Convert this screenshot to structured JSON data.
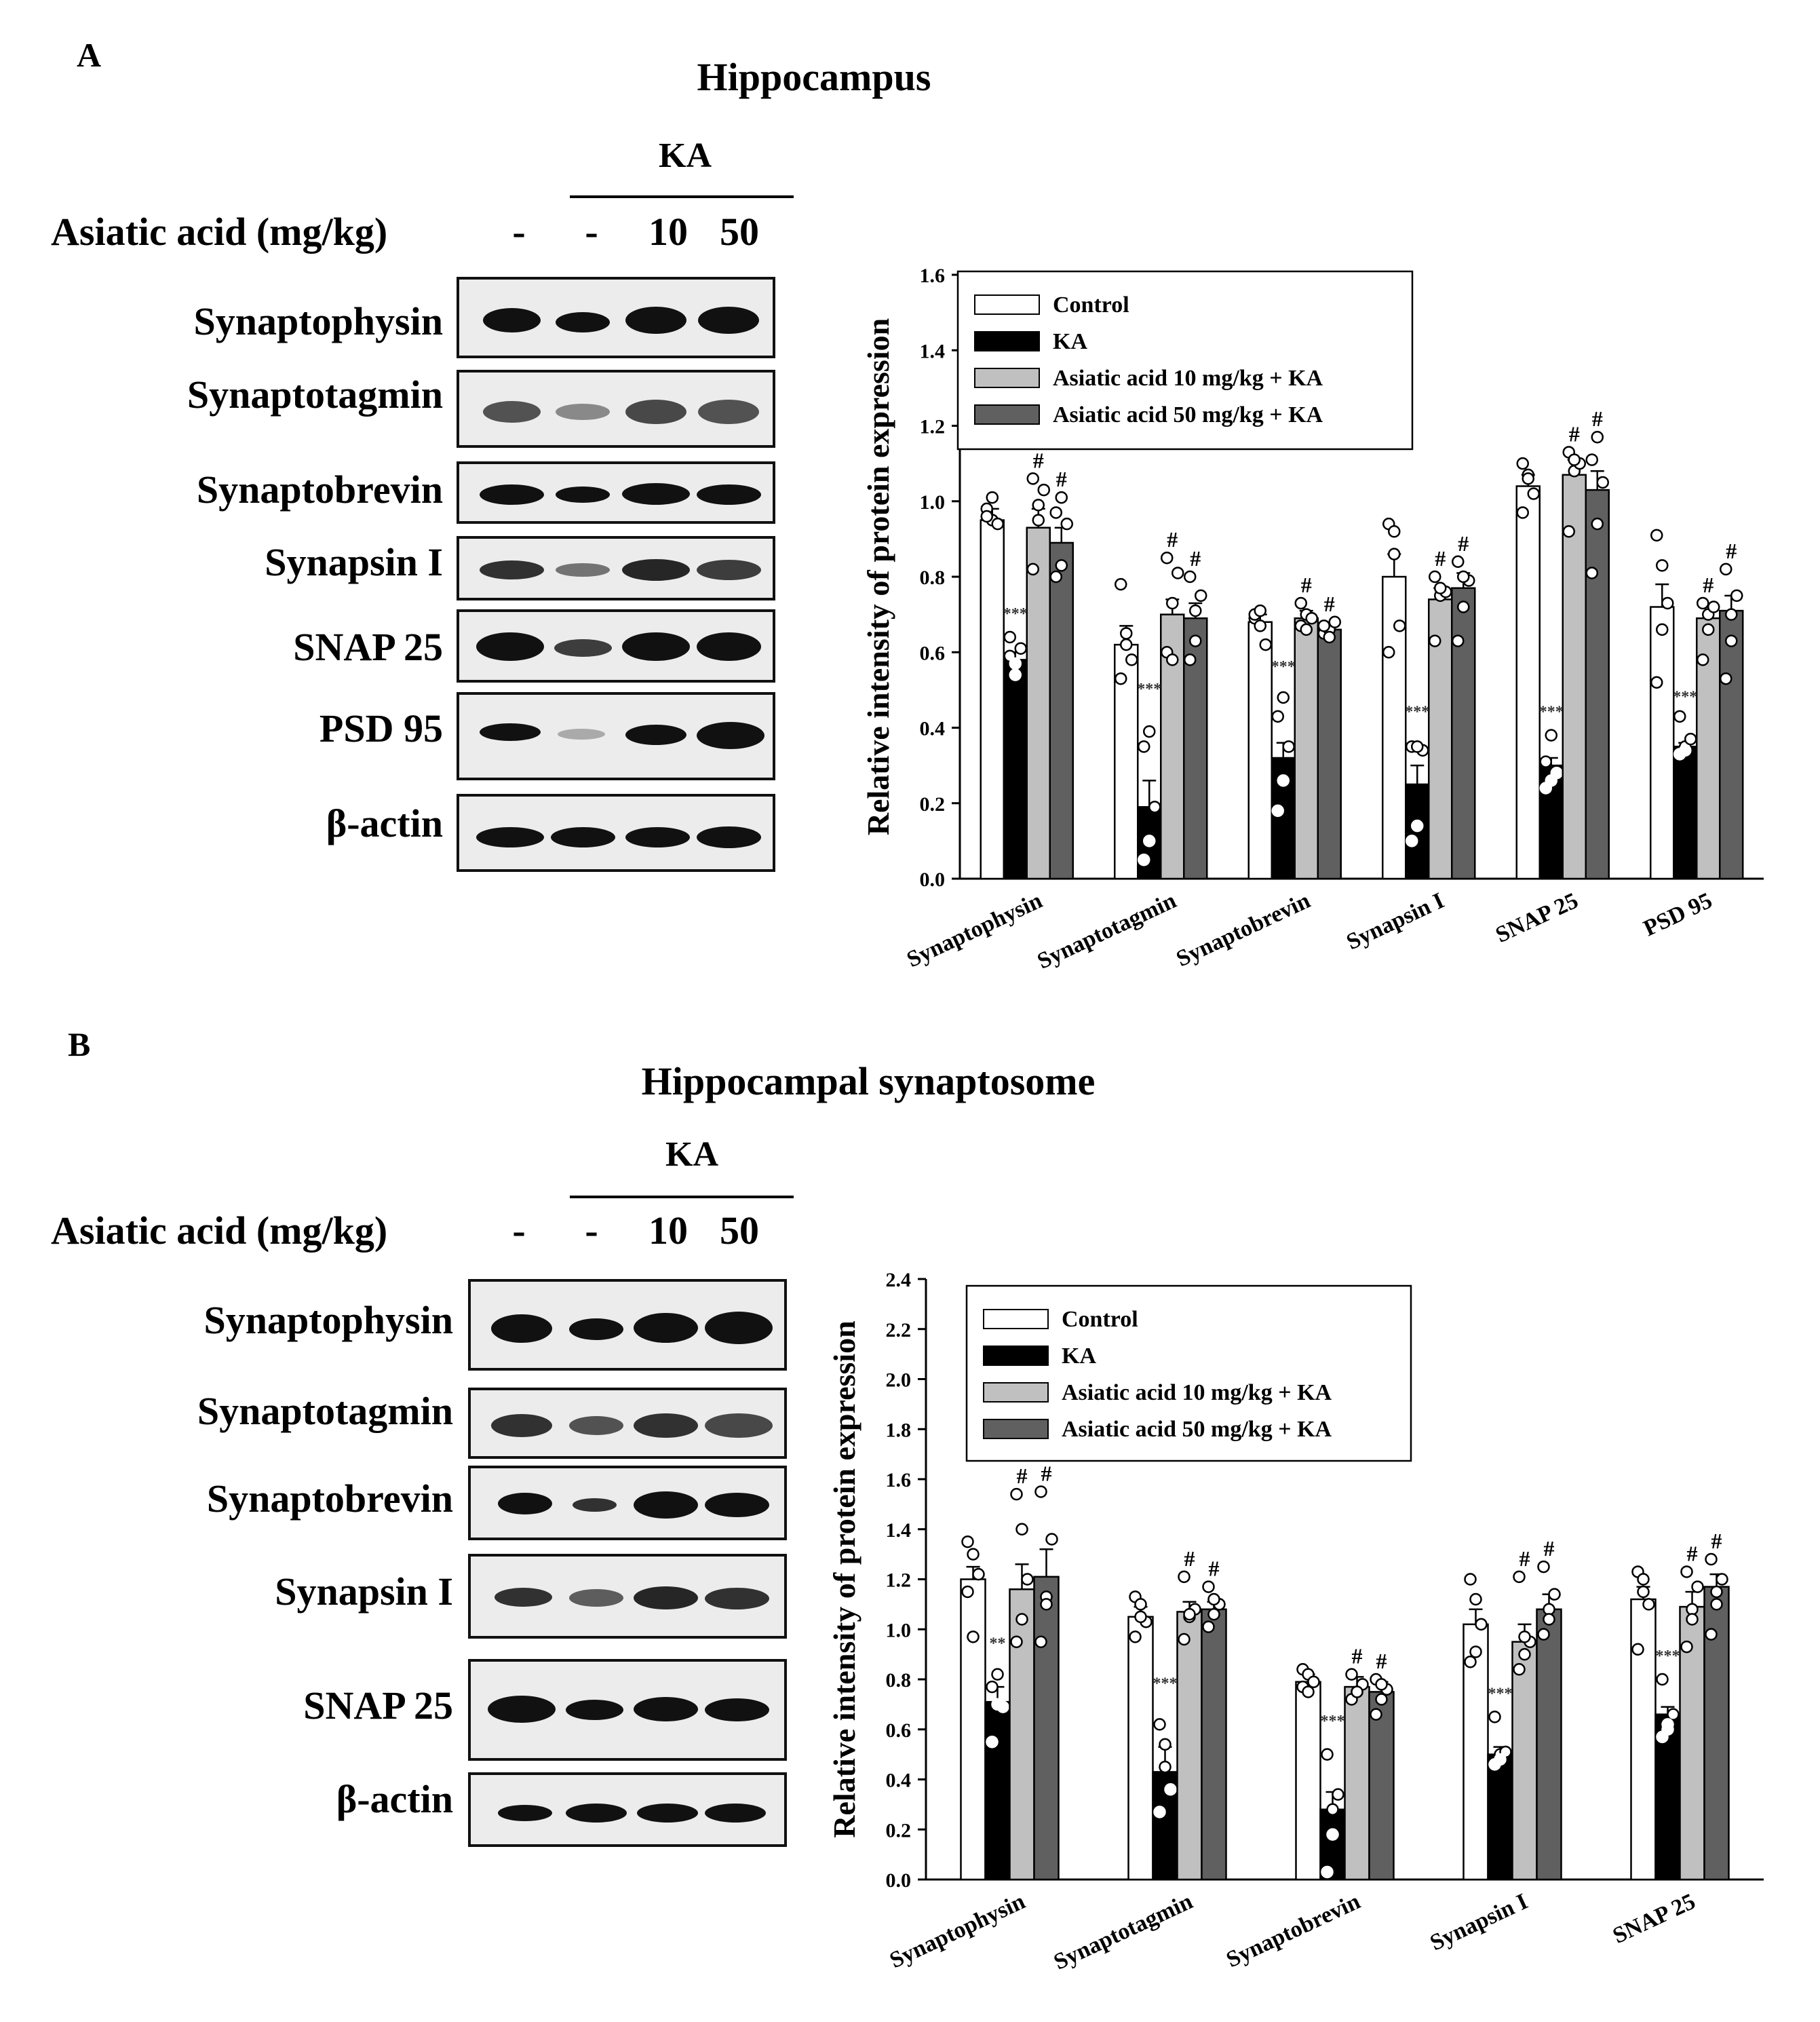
{
  "panels": [
    {
      "letter": "A",
      "title": "Hippocampus",
      "ka_label": "KA",
      "treatment_label": "Asiatic acid (mg/kg)",
      "lanes": [
        "-",
        "-",
        "10",
        "50"
      ],
      "blot_proteins": [
        "Synaptophysin",
        "Synaptotagmin",
        "Synaptobrevin",
        "Synapsin I",
        "SNAP 25",
        "PSD 95",
        "β-actin"
      ]
    },
    {
      "letter": "B",
      "title": "Hippocampal synaptosome",
      "ka_label": "KA",
      "treatment_label": "Asiatic acid (mg/kg)",
      "lanes": [
        "-",
        "-",
        "10",
        "50"
      ],
      "blot_proteins": [
        "Synaptophysin",
        "Synaptotagmin",
        "Synaptobrevin",
        "Synapsin I",
        "SNAP 25",
        "β-actin"
      ]
    }
  ],
  "colors": {
    "control": "#ffffff",
    "ka": "#000000",
    "aa10": "#c0c0c0",
    "aa50": "#606060"
  },
  "chart_data": [
    {
      "type": "bar",
      "ylabel": "Relative intensity of protein expression",
      "ylim": [
        0,
        1.6
      ],
      "yticks": [
        "0.0",
        "0.2",
        "0.4",
        "0.6",
        "0.8",
        "1.0",
        "1.2",
        "1.4",
        "1.6"
      ],
      "categories": [
        "Synaptophysin",
        "Synaptotagmin",
        "Synaptobrevin",
        "Synapsin I",
        "SNAP 25",
        "PSD 95"
      ],
      "series": [
        {
          "name": "Control",
          "values": [
            0.95,
            0.62,
            0.68,
            0.8,
            1.04,
            0.72
          ],
          "errors": [
            0.03,
            0.05,
            0.02,
            0.06,
            0.03,
            0.06
          ]
        },
        {
          "name": "KA",
          "values": [
            0.58,
            0.19,
            0.32,
            0.25,
            0.3,
            0.35
          ],
          "errors": [
            0.02,
            0.07,
            0.04,
            0.05,
            0.02,
            0.01
          ]
        },
        {
          "name": "Asiatic acid 10 mg/kg + KA",
          "values": [
            0.93,
            0.7,
            0.69,
            0.74,
            1.07,
            0.69
          ],
          "errors": [
            0.05,
            0.04,
            0.02,
            0.03,
            0.04,
            0.03
          ]
        },
        {
          "name": "Asiatic acid 50 mg/kg + KA",
          "values": [
            0.89,
            0.69,
            0.66,
            0.77,
            1.03,
            0.71
          ],
          "errors": [
            0.04,
            0.04,
            0.01,
            0.04,
            0.05,
            0.04
          ]
        }
      ],
      "points": [
        [
          [
            0.98,
            0.95,
            0.94,
            0.96,
            1.01
          ],
          [
            0.59,
            0.57,
            0.61,
            0.64,
            0.54
          ],
          [
            0.82,
            0.99,
            1.03,
            1.06,
            0.95
          ],
          [
            0.8,
            0.83,
            0.94,
            0.97,
            1.01
          ]
        ],
        [
          [
            0.78,
            0.65,
            0.58,
            0.53,
            0.62
          ],
          [
            0.05,
            0.1,
            0.19,
            0.35,
            0.39
          ],
          [
            0.6,
            0.73,
            0.81,
            0.85,
            0.58
          ],
          [
            0.58,
            0.71,
            0.75,
            0.8,
            0.63
          ]
        ],
        [
          [
            0.69,
            0.67,
            0.62,
            0.7,
            0.71
          ],
          [
            0.18,
            0.26,
            0.35,
            0.43,
            0.48
          ],
          [
            0.67,
            0.7,
            0.69,
            0.73,
            0.66
          ],
          [
            0.65,
            0.66,
            0.68,
            0.67,
            0.64
          ]
        ],
        [
          [
            0.94,
            0.92,
            0.67,
            0.6,
            0.86
          ],
          [
            0.1,
            0.14,
            0.34,
            0.35,
            0.35
          ],
          [
            0.63,
            0.75,
            0.76,
            0.8,
            0.77
          ],
          [
            0.63,
            0.72,
            0.79,
            0.84,
            0.8
          ]
        ],
        [
          [
            1.1,
            1.07,
            1.02,
            0.97,
            1.06
          ],
          [
            0.24,
            0.26,
            0.28,
            0.31,
            0.38
          ],
          [
            0.92,
            1.08,
            1.1,
            1.13,
            1.11
          ],
          [
            0.81,
            0.94,
            1.05,
            1.11,
            1.17
          ]
        ],
        [
          [
            0.91,
            0.83,
            0.73,
            0.52,
            0.66
          ],
          [
            0.33,
            0.35,
            0.37,
            0.43,
            0.34
          ],
          [
            0.58,
            0.7,
            0.72,
            0.73,
            0.66
          ],
          [
            0.53,
            0.7,
            0.75,
            0.82,
            0.63
          ]
        ]
      ],
      "annotations": [
        {
          "category": 0,
          "series": 1,
          "text": "***"
        },
        {
          "category": 0,
          "series": 2,
          "text": "#"
        },
        {
          "category": 0,
          "series": 3,
          "text": "#"
        },
        {
          "category": 1,
          "series": 1,
          "text": "***"
        },
        {
          "category": 1,
          "series": 2,
          "text": "#"
        },
        {
          "category": 1,
          "series": 3,
          "text": "#"
        },
        {
          "category": 2,
          "series": 1,
          "text": "***"
        },
        {
          "category": 2,
          "series": 2,
          "text": "#"
        },
        {
          "category": 2,
          "series": 3,
          "text": "#"
        },
        {
          "category": 3,
          "series": 1,
          "text": "***"
        },
        {
          "category": 3,
          "series": 2,
          "text": "#"
        },
        {
          "category": 3,
          "series": 3,
          "text": "#"
        },
        {
          "category": 4,
          "series": 1,
          "text": "***"
        },
        {
          "category": 4,
          "series": 2,
          "text": "#"
        },
        {
          "category": 4,
          "series": 3,
          "text": "#"
        },
        {
          "category": 5,
          "series": 1,
          "text": "***"
        },
        {
          "category": 5,
          "series": 2,
          "text": "#"
        },
        {
          "category": 5,
          "series": 3,
          "text": "#"
        }
      ],
      "legend_position": "top-left"
    },
    {
      "type": "bar",
      "ylabel": "Relative intensity of protein expression",
      "ylim": [
        0,
        2.4
      ],
      "yticks": [
        "0.0",
        "0.2",
        "0.4",
        "0.6",
        "0.8",
        "1.0",
        "1.2",
        "1.4",
        "1.6",
        "1.8",
        "2.0",
        "2.2",
        "2.4"
      ],
      "categories": [
        "Synaptophysin",
        "Synaptotagmin",
        "Synaptobrevin",
        "Synapsin I",
        "SNAP 25"
      ],
      "series": [
        {
          "name": "Control",
          "values": [
            1.2,
            1.05,
            0.79,
            1.02,
            1.12
          ],
          "errors": [
            0.05,
            0.04,
            0.03,
            0.06,
            0.05
          ]
        },
        {
          "name": "KA",
          "values": [
            0.71,
            0.43,
            0.28,
            0.5,
            0.66
          ],
          "errors": [
            0.06,
            0.1,
            0.07,
            0.03,
            0.03
          ]
        },
        {
          "name": "Asiatic acid 10 mg/kg + KA",
          "values": [
            1.16,
            1.07,
            0.77,
            0.95,
            1.09
          ],
          "errors": [
            0.1,
            0.04,
            0.04,
            0.07,
            0.06
          ]
        },
        {
          "name": "Asiatic acid 50 mg/kg + KA",
          "values": [
            1.21,
            1.08,
            0.75,
            1.08,
            1.17
          ],
          "errors": [
            0.11,
            0.03,
            0.04,
            0.06,
            0.05
          ]
        }
      ],
      "points": [
        [
          [
            1.35,
            1.3,
            1.22,
            1.15,
            0.97
          ],
          [
            0.77,
            0.82,
            0.69,
            0.55,
            0.7
          ],
          [
            0.95,
            1.04,
            1.2,
            1.54,
            1.4
          ],
          [
            0.95,
            1.13,
            1.36,
            1.55,
            1.1
          ]
        ],
        [
          [
            1.13,
            1.1,
            1.03,
            0.97,
            1.05
          ],
          [
            0.62,
            0.54,
            0.36,
            0.27,
            0.45
          ],
          [
            0.96,
            1.05,
            1.08,
            1.21,
            1.06
          ],
          [
            1.01,
            1.06,
            1.1,
            1.17,
            1.12
          ]
        ],
        [
          [
            0.84,
            0.82,
            0.79,
            0.77,
            0.75
          ],
          [
            0.03,
            0.18,
            0.34,
            0.5,
            0.28
          ],
          [
            0.72,
            0.75,
            0.78,
            0.82,
            0.75
          ],
          [
            0.66,
            0.72,
            0.76,
            0.8,
            0.78
          ]
        ],
        [
          [
            1.2,
            1.12,
            1.02,
            0.87,
            0.91
          ],
          [
            0.46,
            0.5,
            0.51,
            0.65,
            0.48
          ],
          [
            0.84,
            0.9,
            0.95,
            1.21,
            0.97
          ],
          [
            0.98,
            1.08,
            1.14,
            1.25,
            1.04
          ]
        ],
        [
          [
            1.23,
            1.2,
            1.1,
            0.92,
            1.15
          ],
          [
            0.57,
            0.6,
            0.66,
            0.8,
            0.62
          ],
          [
            0.93,
            1.08,
            1.17,
            1.23,
            1.04
          ],
          [
            0.98,
            1.1,
            1.2,
            1.28,
            1.15
          ]
        ]
      ],
      "annotations": [
        {
          "category": 0,
          "series": 1,
          "text": "**"
        },
        {
          "category": 0,
          "series": 2,
          "text": "#"
        },
        {
          "category": 0,
          "series": 3,
          "text": "#"
        },
        {
          "category": 1,
          "series": 1,
          "text": "***"
        },
        {
          "category": 1,
          "series": 2,
          "text": "#"
        },
        {
          "category": 1,
          "series": 3,
          "text": "#"
        },
        {
          "category": 2,
          "series": 1,
          "text": "***"
        },
        {
          "category": 2,
          "series": 2,
          "text": "#"
        },
        {
          "category": 2,
          "series": 3,
          "text": "#"
        },
        {
          "category": 3,
          "series": 1,
          "text": "***"
        },
        {
          "category": 3,
          "series": 2,
          "text": "#"
        },
        {
          "category": 3,
          "series": 3,
          "text": "#"
        },
        {
          "category": 4,
          "series": 1,
          "text": "***"
        },
        {
          "category": 4,
          "series": 2,
          "text": "#"
        },
        {
          "category": 4,
          "series": 3,
          "text": "#"
        }
      ],
      "legend_position": "top-left"
    }
  ]
}
